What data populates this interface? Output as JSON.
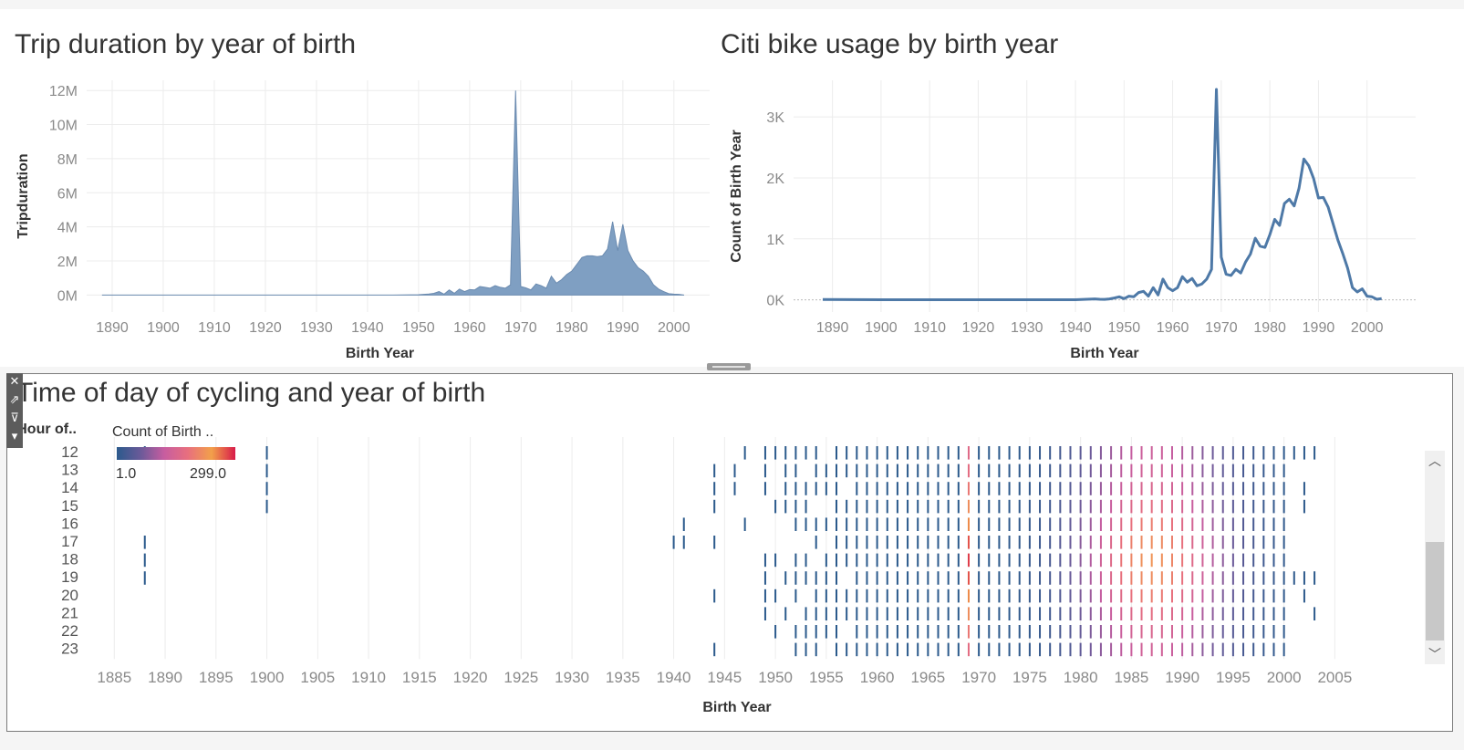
{
  "colors": {
    "area_fill": "#7f9fc2",
    "area_stroke": "#6b8bb0",
    "line": "#4e79a7",
    "color_scale": [
      "#2b5a8c",
      "#6a5a99",
      "#c75da0",
      "#e86f7e",
      "#f2a04a",
      "#d81b4a"
    ]
  },
  "toolbar": {
    "icons": [
      "close-icon",
      "popout-icon",
      "filter-icon",
      "menu-arrow-icon"
    ]
  },
  "charts": [
    {
      "type": "area",
      "title": "Trip duration by year of birth",
      "xlabel": "Birth Year",
      "ylabel": "Tripduration",
      "xlim": [
        1885,
        2007
      ],
      "ylim": [
        -1000000,
        12600000
      ],
      "x_ticks": [
        1890,
        1900,
        1910,
        1920,
        1930,
        1940,
        1950,
        1960,
        1970,
        1980,
        1990,
        2000
      ],
      "y_ticks": [
        0,
        2000000,
        4000000,
        6000000,
        8000000,
        10000000,
        12000000
      ],
      "y_tick_labels": [
        "0M",
        "2M",
        "4M",
        "6M",
        "8M",
        "10M",
        "12M"
      ],
      "x": [
        1888,
        1900,
        1920,
        1940,
        1945,
        1950,
        1952,
        1953,
        1954,
        1955,
        1956,
        1957,
        1958,
        1959,
        1960,
        1961,
        1962,
        1963,
        1964,
        1965,
        1966,
        1967,
        1968,
        1969,
        1970,
        1971,
        1972,
        1973,
        1974,
        1975,
        1976,
        1977,
        1978,
        1979,
        1980,
        1981,
        1982,
        1983,
        1984,
        1985,
        1986,
        1987,
        1988,
        1989,
        1990,
        1991,
        1992,
        1993,
        1994,
        1995,
        1996,
        1997,
        1998,
        1999,
        2000,
        2001,
        2002
      ],
      "values": [
        0,
        0,
        0,
        0,
        0,
        20000,
        60000,
        100000,
        200000,
        50000,
        300000,
        100000,
        350000,
        200000,
        320000,
        300000,
        500000,
        450000,
        400000,
        550000,
        450000,
        400000,
        600000,
        12000000,
        500000,
        420000,
        300000,
        650000,
        550000,
        400000,
        1100000,
        700000,
        900000,
        1200000,
        1400000,
        1800000,
        2200000,
        2300000,
        2300000,
        2250000,
        2300000,
        2700000,
        4300000,
        2600000,
        4150000,
        2600000,
        2000000,
        1600000,
        1400000,
        1100000,
        600000,
        350000,
        200000,
        80000,
        50000,
        40000,
        0
      ]
    },
    {
      "type": "line",
      "title": "Citi bike usage by birth year",
      "xlabel": "Birth Year",
      "ylabel": "Count of Birth Year",
      "xlim": [
        1882,
        2010
      ],
      "ylim": [
        -200,
        3600
      ],
      "x_ticks": [
        1890,
        1900,
        1910,
        1920,
        1930,
        1940,
        1950,
        1960,
        1970,
        1980,
        1990,
        2000
      ],
      "y_ticks": [
        0,
        1000,
        2000,
        3000
      ],
      "y_tick_labels": [
        "0K",
        "1K",
        "2K",
        "3K"
      ],
      "x": [
        1888,
        1900,
        1920,
        1940,
        1944,
        1945,
        1946,
        1947,
        1948,
        1949,
        1950,
        1951,
        1952,
        1953,
        1954,
        1955,
        1956,
        1957,
        1958,
        1959,
        1960,
        1961,
        1962,
        1963,
        1964,
        1965,
        1966,
        1967,
        1968,
        1969,
        1970,
        1971,
        1972,
        1973,
        1974,
        1975,
        1976,
        1977,
        1978,
        1979,
        1980,
        1981,
        1982,
        1983,
        1984,
        1985,
        1986,
        1987,
        1988,
        1989,
        1990,
        1991,
        1992,
        1993,
        1994,
        1995,
        1996,
        1997,
        1998,
        1999,
        2000,
        2001,
        2002,
        2003
      ],
      "values": [
        5,
        2,
        2,
        2,
        15,
        10,
        8,
        15,
        30,
        50,
        20,
        60,
        50,
        120,
        140,
        60,
        200,
        80,
        340,
        200,
        150,
        200,
        380,
        290,
        350,
        230,
        260,
        340,
        500,
        3450,
        700,
        420,
        400,
        500,
        440,
        620,
        750,
        1010,
        880,
        860,
        1070,
        1320,
        1220,
        1580,
        1650,
        1540,
        1830,
        2310,
        2200,
        1990,
        1670,
        1680,
        1520,
        1250,
        980,
        760,
        520,
        200,
        130,
        180,
        60,
        50,
        10,
        20
      ]
    },
    {
      "type": "heatmap",
      "title": "Time of day of cycling and year of birth",
      "xlabel": "Birth Year",
      "ylabel": "Hour of..",
      "legend_title": "Count of Birth ..",
      "legend_min": "1.0",
      "legend_max": "299.0",
      "color_range": [
        1,
        299
      ],
      "xlim": [
        1883,
        2009
      ],
      "x_ticks": [
        1885,
        1890,
        1895,
        1900,
        1905,
        1910,
        1915,
        1920,
        1925,
        1930,
        1935,
        1940,
        1945,
        1950,
        1955,
        1960,
        1965,
        1970,
        1975,
        1980,
        1985,
        1990,
        1995,
        2000,
        2005
      ],
      "hours": [
        "12",
        "13",
        "14",
        "15",
        "16",
        "17",
        "18",
        "19",
        "20",
        "21",
        "22",
        "23"
      ]
    }
  ]
}
